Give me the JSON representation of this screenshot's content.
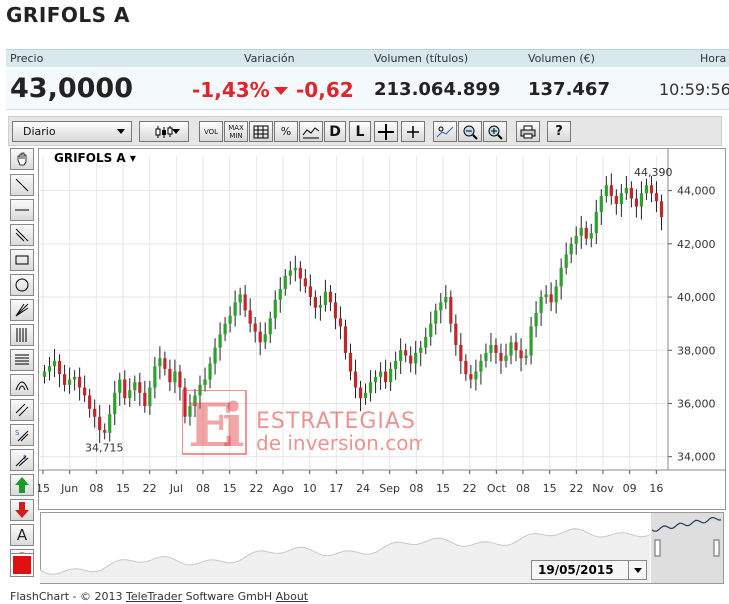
{
  "header": {
    "title": "GRIFOLS A"
  },
  "quote": {
    "labels": {
      "precio": "Precio",
      "variacion": "Variación",
      "volumen_titulos": "Volumen (títulos)",
      "volumen_eur": "Volumen (€)",
      "hora": "Hora"
    },
    "precio": "43,0000",
    "variacion_pct": "-1,43%",
    "variacion_abs": "-0,62",
    "volumen_titulos": "213.064.899",
    "volumen_eur": "137.467",
    "hora": "10:59:56"
  },
  "toolbar": {
    "period": "Diario",
    "vol_label": "VOL",
    "maxmin_top": "MAX",
    "maxmin_bottom": "MIN",
    "percent_label": "%",
    "d_label": "D",
    "l_label": "L",
    "help_label": "?"
  },
  "sidebar": {
    "text_tool": "A"
  },
  "colors": {
    "up": "#2da12d",
    "down": "#c0262b",
    "accent_red": "#e0242b",
    "grid": "#e6e6e6",
    "watermark": "#e03c3c"
  },
  "watermark": {
    "top": "ESTRATEGIAS",
    "bottom": "de inversion.com"
  },
  "navigator": {
    "date": "19/05/2015"
  },
  "footer": {
    "prefix": "FlashChart - © 2013 ",
    "link1": "TeleTrader",
    "middle": " Software GmbH ",
    "link2": "About"
  },
  "chart_data": {
    "type": "candlestick",
    "title": "GRIFOLS A",
    "x_ticks": [
      "15",
      "Jun",
      "08",
      "15",
      "22",
      "Jul",
      "08",
      "15",
      "22",
      "Ago",
      "10",
      "17",
      "24",
      "Sep",
      "08",
      "15",
      "22",
      "Oct",
      "08",
      "15",
      "22",
      "Nov",
      "09",
      "16"
    ],
    "y_ticks": [
      "34,000",
      "36,000",
      "38,000",
      "40,000",
      "42,000",
      "44,000"
    ],
    "ylim": [
      33.5,
      45.3
    ],
    "max_label": "44,390",
    "min_label": "34,715",
    "close": [
      37.2,
      37.4,
      37.6,
      37.1,
      36.7,
      36.9,
      37.0,
      36.6,
      36.3,
      35.8,
      35.5,
      35.0,
      34.9,
      35.6,
      36.4,
      36.9,
      36.2,
      36.5,
      36.8,
      36.4,
      35.9,
      36.6,
      37.4,
      37.7,
      37.3,
      36.8,
      37.2,
      36.6,
      35.5,
      35.9,
      36.3,
      36.7,
      36.9,
      37.5,
      38.1,
      38.6,
      39.0,
      39.3,
      39.8,
      40.1,
      39.5,
      39.0,
      38.7,
      38.3,
      38.6,
      39.2,
      39.9,
      40.3,
      40.8,
      41.0,
      41.1,
      40.7,
      40.4,
      40.0,
      39.6,
      39.7,
      40.2,
      39.8,
      39.2,
      38.9,
      37.9,
      37.2,
      36.6,
      36.2,
      36.4,
      36.8,
      37.0,
      37.2,
      36.8,
      37.3,
      37.6,
      38.0,
      37.8,
      37.5,
      37.9,
      38.1,
      38.5,
      39.0,
      39.5,
      39.8,
      40.0,
      39.0,
      38.2,
      37.6,
      37.1,
      36.9,
      37.2,
      37.6,
      37.9,
      38.2,
      37.9,
      37.6,
      37.8,
      38.3,
      38.0,
      37.7,
      37.8,
      38.9,
      39.4,
      40.0,
      40.1,
      39.8,
      40.4,
      41.1,
      41.6,
      42.0,
      42.3,
      42.6,
      42.2,
      42.4,
      43.2,
      43.8,
      44.2,
      43.8,
      43.5,
      43.9,
      44.1,
      43.7,
      43.4,
      43.9,
      44.2,
      43.9,
      43.6,
      43.0
    ],
    "series": [
      {
        "name": "GRIFOLS A",
        "type": "candlestick"
      }
    ],
    "navigator": {
      "type": "area",
      "trend": "rising"
    }
  }
}
